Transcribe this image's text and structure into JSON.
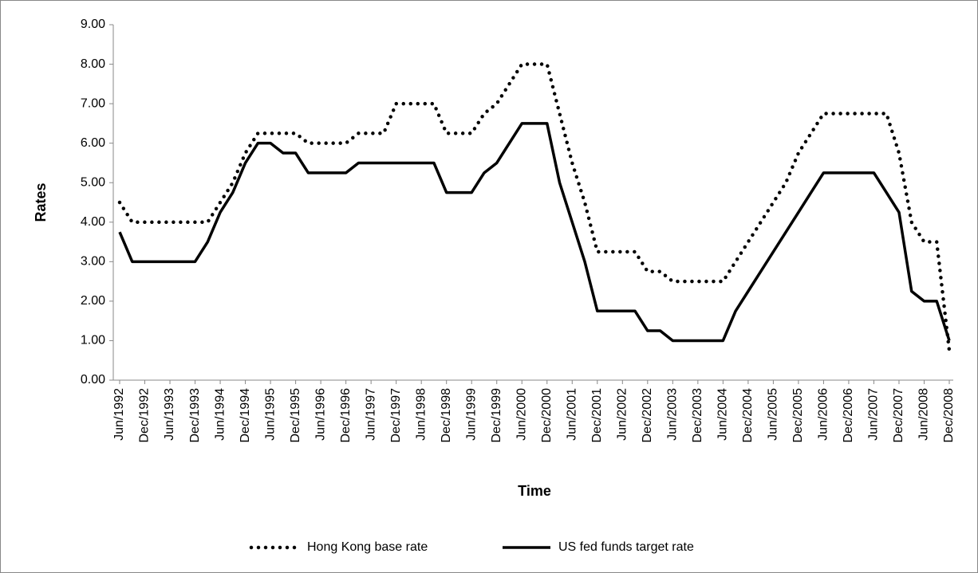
{
  "chart_data": {
    "type": "line",
    "y_label": "Rates",
    "x_label": "Time",
    "categories": [
      "Jun/1992",
      null,
      "Dec/1992",
      null,
      "Jun/1993",
      null,
      "Dec/1993",
      null,
      "Jun/1994",
      null,
      "Dec/1994",
      null,
      "Jun/1995",
      null,
      "Dec/1995",
      null,
      "Jun/1996",
      null,
      "Dec/1996",
      null,
      "Jun/1997",
      null,
      "Dec/1997",
      null,
      "Jun/1998",
      null,
      "Dec/1998",
      null,
      "Jun/1999",
      null,
      "Dec/1999",
      null,
      "Jun/2000",
      null,
      "Dec/2000",
      null,
      "Jun/2001",
      null,
      "Dec/2001",
      null,
      "Jun/2002",
      null,
      "Dec/2002",
      null,
      "Jun/2003",
      null,
      "Dec/2003",
      null,
      "Jun/2004",
      null,
      "Dec/2004",
      null,
      "Jun/2005",
      null,
      "Dec/2005",
      null,
      "Jun/2006",
      null,
      "Dec/2006",
      null,
      "Jun/2007",
      null,
      "Dec/2007",
      null,
      "Jun/2008",
      null,
      "Dec/2008"
    ],
    "series": [
      {
        "name": "Hong Kong base rate",
        "color": "#000000",
        "dash": "dotted",
        "values": [
          4.5,
          4.0,
          4.0,
          4.0,
          4.0,
          4.0,
          4.0,
          4.0,
          4.5,
          5.0,
          5.75,
          6.25,
          6.25,
          6.25,
          6.25,
          6.0,
          6.0,
          6.0,
          6.0,
          6.25,
          6.25,
          6.25,
          7.0,
          7.0,
          7.0,
          7.0,
          6.25,
          6.25,
          6.25,
          6.75,
          7.0,
          7.5,
          8.0,
          8.0,
          8.0,
          6.75,
          5.5,
          4.5,
          3.25,
          3.25,
          3.25,
          3.25,
          2.75,
          2.75,
          2.5,
          2.5,
          2.5,
          2.5,
          2.5,
          3.0,
          3.5,
          4.0,
          4.5,
          5.0,
          5.75,
          6.25,
          6.75,
          6.75,
          6.75,
          6.75,
          6.75,
          6.75,
          5.75,
          4.0,
          3.5,
          3.5,
          0.75
        ]
      },
      {
        "name": "US fed funds target rate",
        "color": "#000000",
        "dash": "solid",
        "values": [
          3.75,
          3.0,
          3.0,
          3.0,
          3.0,
          3.0,
          3.0,
          3.5,
          4.25,
          4.75,
          5.5,
          6.0,
          6.0,
          5.75,
          5.75,
          5.25,
          5.25,
          5.25,
          5.25,
          5.5,
          5.5,
          5.5,
          5.5,
          5.5,
          5.5,
          5.5,
          4.75,
          4.75,
          4.75,
          5.25,
          5.5,
          6.0,
          6.5,
          6.5,
          6.5,
          5.0,
          4.0,
          3.0,
          1.75,
          1.75,
          1.75,
          1.75,
          1.25,
          1.25,
          1.0,
          1.0,
          1.0,
          1.0,
          1.0,
          1.75,
          2.25,
          2.75,
          3.25,
          3.75,
          4.25,
          4.75,
          5.25,
          5.25,
          5.25,
          5.25,
          5.25,
          4.75,
          4.25,
          2.25,
          2.0,
          2.0,
          1.0
        ]
      }
    ],
    "ylim": [
      0,
      9
    ],
    "yticks": [
      {
        "value": 0,
        "label": "0.00"
      },
      {
        "value": 1,
        "label": "1.00"
      },
      {
        "value": 2,
        "label": "2.00"
      },
      {
        "value": 3,
        "label": "3.00"
      },
      {
        "value": 4,
        "label": "4.00"
      },
      {
        "value": 5,
        "label": "5.00"
      },
      {
        "value": 6,
        "label": "6.00"
      },
      {
        "value": 7,
        "label": "7.00"
      },
      {
        "value": 8,
        "label": "8.00"
      },
      {
        "value": 9,
        "label": "9.00"
      }
    ],
    "grid": false,
    "legend": "bottom"
  }
}
